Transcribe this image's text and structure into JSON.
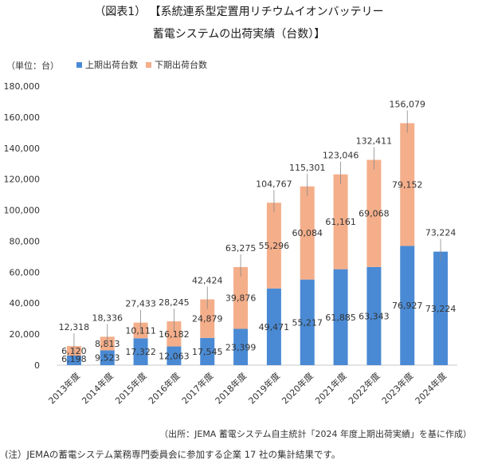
{
  "header": {
    "title_line1": "（図表1） 【系統連系型定置用リチウムイオンバッテリー",
    "title_line2": "蓄電システムの出荷実績（台数）】",
    "unit": "（単位：台）"
  },
  "colors": {
    "first_half": "#4a8ad4",
    "second_half": "#f4ae8a"
  },
  "chart_data": {
    "type": "bar",
    "stacked": true,
    "title": "系統連系型定置用リチウムイオンバッテリー蓄電システムの出荷実績（台数）",
    "ylabel": "（単位：台）",
    "ylim": [
      0,
      180000
    ],
    "yticks": [
      0,
      20000,
      40000,
      60000,
      80000,
      100000,
      120000,
      140000,
      160000,
      180000
    ],
    "ytick_labels": [
      "0",
      "20,000",
      "40,000",
      "60,000",
      "80,000",
      "100,000",
      "120,000",
      "140,000",
      "160,000",
      "180,000"
    ],
    "categories": [
      "2013年度",
      "2014年度",
      "2015年度",
      "2016年度",
      "2017年度",
      "2018年度",
      "2019年度",
      "2020年度",
      "2021年度",
      "2022年度",
      "2023年度",
      "2024年度"
    ],
    "series": [
      {
        "name": "上期出荷台数",
        "values": [
          6198,
          9523,
          17322,
          12063,
          17545,
          23399,
          49471,
          55217,
          61885,
          63343,
          76927,
          73224
        ],
        "labels": [
          "6,198",
          "9,523",
          "17,322",
          "12,063",
          "17,545",
          "23,399",
          "49,471",
          "55,217",
          "61,885",
          "63,343",
          "76,927",
          "73,224"
        ]
      },
      {
        "name": "下期出荷台数",
        "values": [
          6120,
          8813,
          10111,
          16182,
          24879,
          39876,
          55296,
          60084,
          61161,
          69068,
          79152,
          null
        ],
        "labels": [
          "6,120",
          "8,813",
          "10,111",
          "16,182",
          "24,879",
          "39,876",
          "55,296",
          "60,084",
          "61,161",
          "69,068",
          "79,152",
          ""
        ]
      }
    ],
    "totals": [
      12318,
      18336,
      27433,
      28245,
      42424,
      63275,
      104767,
      115301,
      123046,
      132411,
      156079,
      73224
    ],
    "total_labels": [
      "12,318",
      "18,336",
      "27,433",
      "28,245",
      "42,424",
      "63,275",
      "104,767",
      "115,301",
      "123,046",
      "132,411",
      "156,079",
      "73,224"
    ],
    "legend_position": "top-left",
    "grid": false
  },
  "footer": {
    "source": "（出所：JEMA 蓄電システム自主統計「2024 年度上期出荷実績」を基に作成）",
    "note": "(注）JEMAの蓄電システム業務専門委員会に参加する企業 17 社の集計結果です。"
  }
}
